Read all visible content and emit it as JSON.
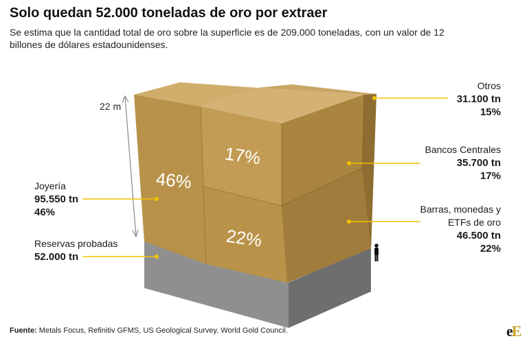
{
  "title": "Solo quedan 52.000 toneladas de oro por extraer",
  "subtitle": "Se estima que la cantidad total de oro sobre la superficie es de 209.000 toneladas, con un valor de 12 billones de dólares estadounidenses.",
  "height_marker": "22 m",
  "colors": {
    "gold_front": "#b8924a",
    "gold_top": "#cfad6a",
    "gold_side": "#9c7a3b",
    "base_front": "#8f8f8f",
    "base_side": "#6e6e6e",
    "leader": "#f2c200"
  },
  "chart_data": {
    "type": "cube-volume",
    "title": "Solo quedan 52.000 toneladas de oro por extraer",
    "subtitle": "Se estima que la cantidad total de oro sobre la superficie es de 209.000 toneladas, con un valor de 12 billones de dólares estadounidenses.",
    "unit": "tn",
    "segments": [
      {
        "name": "Joyería",
        "value_label": "95.550 tn",
        "value": 95550,
        "pct_label": "46%",
        "pct": 46
      },
      {
        "name": "Otros",
        "value_label": "31.100 tn",
        "value": 31100,
        "pct_label": "15%",
        "pct": 15
      },
      {
        "name": "Bancos Centrales",
        "value_label": "35.700 tn",
        "value": 35700,
        "pct_label": "17%",
        "pct": 17
      },
      {
        "name_line1": "Barras, monedas y",
        "name_line2": "ETFs de oro",
        "value_label": "46.500 tn",
        "value": 46500,
        "pct_label": "22%",
        "pct": 22
      }
    ],
    "reserves": {
      "name": "Reservas probadas",
      "value_label": "52.000 tn",
      "value": 52000
    }
  },
  "source": {
    "label": "Fuente:",
    "text": "Metals Focus, Refinitiv GFMS, US Geological Survey, World Gold Council."
  },
  "logo": {
    "part1": "e",
    "part2": "E"
  }
}
